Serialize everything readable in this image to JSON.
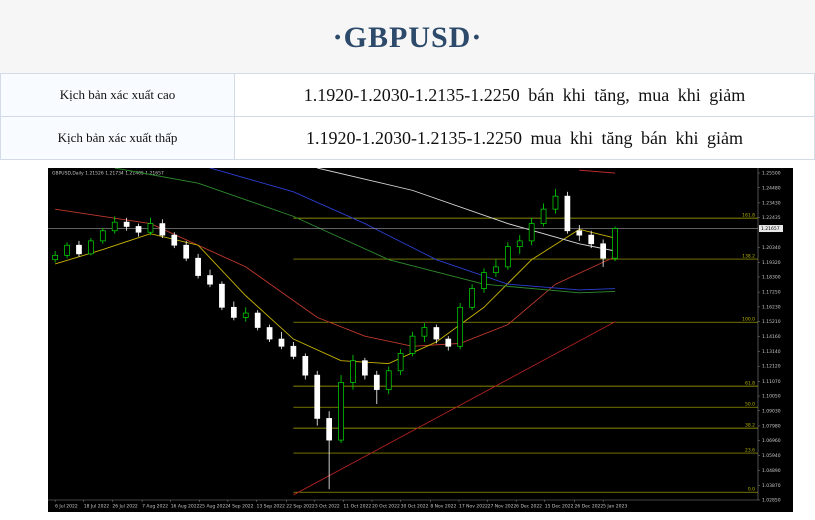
{
  "header": {
    "title": "·GBPUSD·"
  },
  "table": {
    "rows": [
      [
        "Kịch bản xác xuất cao",
        "1.1920-1.2030-1.2135-1.2250 bán khi tăng, mua khi giảm"
      ],
      [
        "Kịch bản xác xuất thấp",
        "1.1920-1.2030-1.2135-1.2250 mua khi tăng bán khi giảm"
      ]
    ]
  },
  "chart_data": {
    "type": "candlestick",
    "symbol_label": "GBPUSD,Daily 1.21526 1.21734 1.21405 1.21657",
    "up_color": "#00e000",
    "down_color": "#ffffff",
    "xlim": [
      -0.6,
      59
    ],
    "ylim": [
      1.0285,
      1.2585
    ],
    "xticks": [
      {
        "value": 0,
        "label": "6 Jul 2022"
      },
      {
        "value": 2.4,
        "label": "18 Jul 2022"
      },
      {
        "value": 4.8,
        "label": "26 Jul 2022"
      },
      {
        "value": 7.3,
        "label": "7 Aug 2022"
      },
      {
        "value": 9.7,
        "label": "16 Aug 2022"
      },
      {
        "value": 12.1,
        "label": "25 Aug 2022"
      },
      {
        "value": 14.5,
        "label": "4 Sep 2022"
      },
      {
        "value": 16.9,
        "label": "13 Sep 2022"
      },
      {
        "value": 19.4,
        "label": "22 Sep 2022"
      },
      {
        "value": 21.8,
        "label": "3 Oct 2022"
      },
      {
        "value": 24.2,
        "label": "11 Oct 2022"
      },
      {
        "value": 26.6,
        "label": "20 Oct 2022"
      },
      {
        "value": 29.0,
        "label": "30 Oct 2022"
      },
      {
        "value": 31.5,
        "label": "8 Nov 2022"
      },
      {
        "value": 33.9,
        "label": "17 Nov 2022"
      },
      {
        "value": 36.3,
        "label": "27 Nov 2022"
      },
      {
        "value": 38.7,
        "label": "6 Dec 2022"
      },
      {
        "value": 41.1,
        "label": "15 Dec 2022"
      },
      {
        "value": 43.6,
        "label": "26 Dec 2022"
      },
      {
        "value": 46.0,
        "label": "5 Jan 2023"
      }
    ],
    "yticks": [
      {
        "value": 1.255,
        "label": "1.25500"
      },
      {
        "value": 1.2448,
        "label": "1.24480"
      },
      {
        "value": 1.2343,
        "label": "1.23430"
      },
      {
        "value": 1.22435,
        "label": "1.22435"
      },
      {
        "value": 1.2034,
        "label": "1.20340"
      },
      {
        "value": 1.1932,
        "label": "1.19320"
      },
      {
        "value": 1.183,
        "label": "1.18300"
      },
      {
        "value": 1.1725,
        "label": "1.17250"
      },
      {
        "value": 1.1623,
        "label": "1.16230"
      },
      {
        "value": 1.1521,
        "label": "1.15210"
      },
      {
        "value": 1.1416,
        "label": "1.14160"
      },
      {
        "value": 1.1314,
        "label": "1.13140"
      },
      {
        "value": 1.1212,
        "label": "1.12120"
      },
      {
        "value": 1.1107,
        "label": "1.11070"
      },
      {
        "value": 1.1005,
        "label": "1.10050"
      },
      {
        "value": 1.0903,
        "label": "1.09030"
      },
      {
        "value": 1.0798,
        "label": "1.07980"
      },
      {
        "value": 1.0696,
        "label": "1.06960"
      },
      {
        "value": 1.0594,
        "label": "1.05940"
      },
      {
        "value": 1.0489,
        "label": "1.04890"
      },
      {
        "value": 1.0387,
        "label": "1.03870"
      },
      {
        "value": 1.0285,
        "label": "1.02850"
      }
    ],
    "last_price": 1.21657,
    "candles": [
      [
        1.195,
        1.201,
        1.193,
        1.198
      ],
      [
        1.198,
        1.207,
        1.196,
        1.205
      ],
      [
        1.205,
        1.208,
        1.197,
        1.199
      ],
      [
        1.199,
        1.21,
        1.198,
        1.208
      ],
      [
        1.208,
        1.217,
        1.206,
        1.215
      ],
      [
        1.215,
        1.225,
        1.213,
        1.221
      ],
      [
        1.221,
        1.224,
        1.215,
        1.218
      ],
      [
        1.218,
        1.22,
        1.211,
        1.214
      ],
      [
        1.214,
        1.224,
        1.212,
        1.22
      ],
      [
        1.22,
        1.223,
        1.21,
        1.212
      ],
      [
        1.212,
        1.214,
        1.203,
        1.205
      ],
      [
        1.205,
        1.208,
        1.194,
        1.196
      ],
      [
        1.196,
        1.199,
        1.182,
        1.184
      ],
      [
        1.184,
        1.188,
        1.176,
        1.178
      ],
      [
        1.178,
        1.18,
        1.16,
        1.162
      ],
      [
        1.162,
        1.166,
        1.153,
        1.155
      ],
      [
        1.155,
        1.162,
        1.152,
        1.158
      ],
      [
        1.158,
        1.16,
        1.146,
        1.148
      ],
      [
        1.148,
        1.15,
        1.138,
        1.14
      ],
      [
        1.14,
        1.145,
        1.133,
        1.135
      ],
      [
        1.135,
        1.138,
        1.126,
        1.128
      ],
      [
        1.128,
        1.13,
        1.112,
        1.115
      ],
      [
        1.115,
        1.118,
        1.08,
        1.085
      ],
      [
        1.085,
        1.09,
        1.036,
        1.07
      ],
      [
        1.07,
        1.115,
        1.068,
        1.11
      ],
      [
        1.11,
        1.129,
        1.105,
        1.125
      ],
      [
        1.125,
        1.127,
        1.112,
        1.115
      ],
      [
        1.115,
        1.118,
        1.095,
        1.105
      ],
      [
        1.105,
        1.121,
        1.102,
        1.118
      ],
      [
        1.118,
        1.133,
        1.115,
        1.13
      ],
      [
        1.13,
        1.145,
        1.128,
        1.142
      ],
      [
        1.142,
        1.151,
        1.138,
        1.148
      ],
      [
        1.148,
        1.15,
        1.137,
        1.14
      ],
      [
        1.14,
        1.142,
        1.132,
        1.135
      ],
      [
        1.135,
        1.165,
        1.133,
        1.162
      ],
      [
        1.162,
        1.178,
        1.16,
        1.175
      ],
      [
        1.175,
        1.189,
        1.172,
        1.186
      ],
      [
        1.186,
        1.195,
        1.183,
        1.19
      ],
      [
        1.19,
        1.207,
        1.188,
        1.204
      ],
      [
        1.204,
        1.212,
        1.199,
        1.208
      ],
      [
        1.208,
        1.224,
        1.205,
        1.22
      ],
      [
        1.22,
        1.234,
        1.218,
        1.23
      ],
      [
        1.23,
        1.244,
        1.227,
        1.239
      ],
      [
        1.239,
        1.242,
        1.213,
        1.215
      ],
      [
        1.215,
        1.219,
        1.208,
        1.212
      ],
      [
        1.212,
        1.215,
        1.203,
        1.206
      ],
      [
        1.206,
        1.209,
        1.19,
        1.196
      ],
      [
        1.196,
        1.218,
        1.194,
        1.2166
      ]
    ],
    "lines": [
      {
        "color": "#c0392b",
        "x": [
          0,
          8,
          16,
          22,
          26,
          30,
          34,
          38,
          42,
          47
        ],
        "values": [
          1.23,
          1.22,
          1.19,
          1.155,
          1.142,
          1.135,
          1.137,
          1.15,
          1.178,
          1.197
        ]
      },
      {
        "color": "#c8b400",
        "x": [
          0,
          4,
          8,
          12,
          16,
          20,
          24,
          28,
          32,
          36,
          40,
          44,
          47
        ],
        "values": [
          1.192,
          1.202,
          1.213,
          1.205,
          1.17,
          1.14,
          1.125,
          1.123,
          1.138,
          1.162,
          1.195,
          1.216,
          1.21
        ]
      },
      {
        "color": "#2a3fd0",
        "x": [
          13,
          20,
          26,
          32,
          38,
          44,
          47
        ],
        "values": [
          1.2585,
          1.242,
          1.22,
          1.195,
          1.178,
          1.174,
          1.175
        ]
      },
      {
        "color": "#2e8b2e",
        "x": [
          5,
          12,
          20,
          28,
          36,
          44,
          47
        ],
        "values": [
          1.2585,
          1.248,
          1.225,
          1.195,
          1.178,
          1.172,
          1.173
        ]
      },
      {
        "color": "#d8d8d8",
        "x": [
          22,
          30,
          38,
          44,
          47
        ],
        "values": [
          1.2585,
          1.243,
          1.22,
          1.206,
          1.201
        ]
      },
      {
        "color": "#b02020",
        "x": [
          20,
          47
        ],
        "values": [
          1.032,
          1.152
        ]
      },
      {
        "color": "#d03030",
        "x": [
          44,
          47
        ],
        "values": [
          1.257,
          1.255
        ]
      }
    ],
    "fib_start": 20,
    "fib_color": "#b5b500",
    "fib_levels": [
      {
        "value": 1.2238,
        "label": "161.8"
      },
      {
        "value": 1.1954,
        "label": "138.2"
      },
      {
        "value": 1.1517,
        "label": "100.0"
      },
      {
        "value": 1.1074,
        "label": "61.8"
      },
      {
        "value": 1.0928,
        "label": "50.0"
      },
      {
        "value": 1.0783,
        "label": "38.2"
      },
      {
        "value": 1.061,
        "label": "23.6"
      },
      {
        "value": 1.0339,
        "label": "0.0"
      }
    ]
  }
}
